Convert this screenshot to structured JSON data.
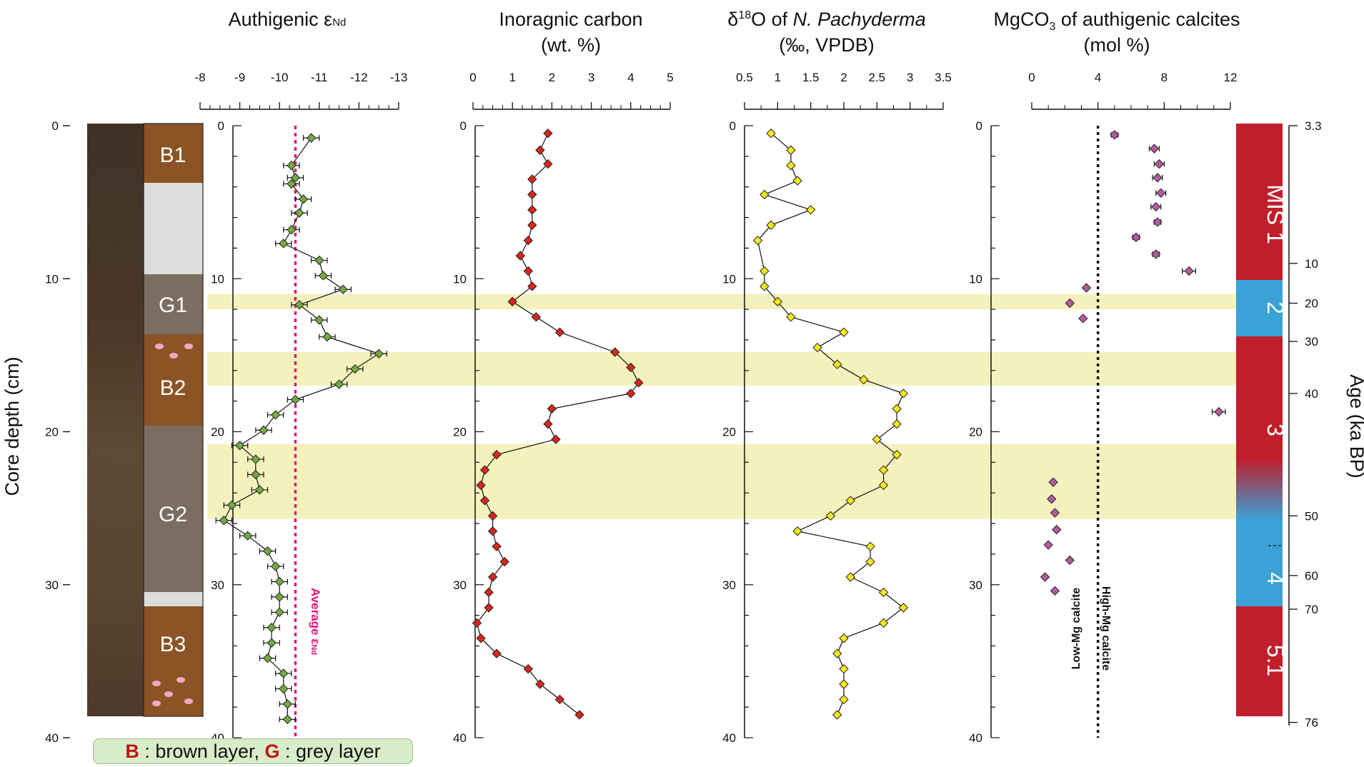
{
  "panels": {
    "eps": {
      "title": "Authigenic ε",
      "title_sub": "Nd",
      "ticks": [
        "-8",
        "-9",
        "-10",
        "-11",
        "-12",
        "-13"
      ]
    },
    "ic": {
      "title_line1": "Inoragnic carbon",
      "title_line2": "(wt. %)",
      "ticks": [
        "0",
        "1",
        "2",
        "3",
        "4",
        "5"
      ]
    },
    "d18o": {
      "title_prefix": "δ",
      "title_sup": "18",
      "title_mid": "O of ",
      "title_species": "N. Pachyderma",
      "title_line2": "(‰, VPDB)",
      "ticks": [
        "0.5",
        "1",
        "1.5",
        "2",
        "2.5",
        "3",
        "3.5"
      ]
    },
    "mg": {
      "title_a": "MgCO",
      "title_sub": "3",
      "title_b": " of authigenic calcites",
      "title_line2": "(mol %)",
      "ticks": [
        "0",
        "4",
        "8",
        "12"
      ]
    }
  },
  "depth_axis": {
    "label": "Core depth (cm)",
    "ticks": [
      "0",
      "10",
      "20",
      "30",
      "40"
    ]
  },
  "age_axis": {
    "label": "Age (ka BP)",
    "ticks": [
      "3.3",
      "10",
      "20",
      "30",
      "40",
      "50",
      "60",
      "70",
      "76"
    ]
  },
  "lithology": [
    "B1",
    "G1",
    "B2",
    "G2",
    "B3"
  ],
  "mis_stages": [
    "MIS 1",
    "2",
    "3",
    "4",
    "5.1"
  ],
  "annotations": {
    "average_label": "Average ε",
    "average_sub": "Nd",
    "low_mg": "Low-Mg calcite",
    "high_mg": "High-Mg calcite"
  },
  "legend": {
    "b_key": "B",
    "b_text": " : brown layer, ",
    "g_key": "G",
    "g_text": " : grey layer"
  },
  "colors": {
    "brown": "#8a5424",
    "grey": "#7b6e60",
    "light_grey": "#dcdcdc",
    "mis_red": "#c11e2c",
    "mis_blue": "#3aa2d6",
    "highlight": "#f4f1bd",
    "eps_marker": "#74aa3e",
    "ic_marker": "#d9261c",
    "d18o_marker": "#f7e81b",
    "mg_marker": "#b65aa0",
    "average": "#e0157b"
  },
  "chart_data": [
    {
      "type": "line",
      "title": "Authigenic εNd",
      "xlabel": "εNd",
      "ylabel": "Core depth (cm)",
      "xlim": [
        -8,
        -13
      ],
      "ylim": [
        0,
        40
      ],
      "average": -10.4,
      "series": [
        {
          "name": "Authigenic εNd",
          "depth": [
            0.8,
            2.6,
            3.4,
            3.8,
            4.8,
            5.7,
            6.8,
            7.7,
            8.8,
            9.8,
            10.7,
            11.7,
            12.7,
            13.8,
            14.9,
            15.9,
            16.9,
            17.9,
            18.9,
            19.9,
            20.9,
            21.8,
            22.8,
            23.8,
            24.8,
            25.8,
            26.8,
            27.8,
            28.8,
            29.8,
            30.8,
            31.8,
            32.8,
            33.8,
            34.8,
            35.8,
            36.8,
            37.8,
            38.8
          ],
          "values": [
            -10.8,
            -10.3,
            -10.4,
            -10.3,
            -10.6,
            -10.5,
            -10.3,
            -10.1,
            -11.0,
            -11.1,
            -11.6,
            -10.5,
            -11.0,
            -11.2,
            -12.5,
            -11.9,
            -11.5,
            -10.4,
            -9.9,
            -9.6,
            -9.0,
            -9.4,
            -9.4,
            -9.5,
            -8.8,
            -8.6,
            -9.2,
            -9.7,
            -9.9,
            -10.0,
            -10.0,
            -10.0,
            -9.8,
            -9.8,
            -9.7,
            -10.1,
            -10.1,
            -10.2,
            -10.2
          ],
          "error": 0.2
        }
      ]
    },
    {
      "type": "line",
      "title": "Inoragnic carbon (wt. %)",
      "xlabel": "wt. %",
      "ylabel": "Core depth (cm)",
      "xlim": [
        0,
        5
      ],
      "ylim": [
        0,
        40
      ],
      "series": [
        {
          "name": "Inorganic carbon",
          "depth": [
            0.5,
            1.6,
            2.5,
            3.5,
            4.5,
            5.5,
            6.5,
            7.5,
            8.5,
            9.5,
            10.5,
            11.5,
            12.5,
            13.5,
            14.8,
            15.8,
            16.8,
            17.5,
            18.5,
            19.5,
            20.5,
            21.5,
            22.5,
            23.5,
            24.5,
            25.5,
            26.5,
            27.5,
            28.5,
            29.5,
            30.5,
            31.5,
            32.5,
            33.5,
            34.5,
            35.5,
            36.5,
            37.5,
            38.5
          ],
          "values": [
            1.9,
            1.7,
            1.9,
            1.5,
            1.5,
            1.5,
            1.5,
            1.4,
            1.2,
            1.4,
            1.5,
            1.0,
            1.6,
            2.2,
            3.6,
            4.0,
            4.2,
            4.0,
            2.0,
            1.9,
            2.1,
            0.6,
            0.3,
            0.2,
            0.3,
            0.5,
            0.5,
            0.6,
            0.8,
            0.5,
            0.4,
            0.4,
            0.1,
            0.2,
            0.6,
            1.4,
            1.7,
            2.2,
            2.7
          ]
        }
      ]
    },
    {
      "type": "line",
      "title": "δ¹⁸O of N. Pachyderma (‰, VPDB)",
      "xlabel": "‰ VPDB",
      "ylabel": "Core depth (cm)",
      "xlim": [
        0.5,
        3.5
      ],
      "ylim": [
        0,
        40
      ],
      "series": [
        {
          "name": "δ¹⁸O",
          "depth": [
            0.5,
            1.6,
            2.6,
            3.6,
            4.5,
            5.5,
            6.5,
            7.5,
            9.5,
            10.5,
            11.5,
            12.5,
            13.5,
            14.5,
            15.6,
            16.6,
            17.5,
            18.5,
            19.5,
            20.5,
            21.5,
            22.5,
            23.5,
            24.5,
            25.5,
            26.5,
            27.5,
            28.5,
            29.5,
            30.5,
            31.5,
            32.5,
            33.5,
            34.5,
            35.5,
            36.5,
            37.5,
            38.5
          ],
          "values": [
            0.9,
            1.2,
            1.2,
            1.3,
            0.8,
            1.5,
            0.9,
            0.7,
            0.8,
            0.8,
            1.0,
            1.2,
            2.0,
            1.6,
            1.9,
            2.3,
            2.9,
            2.8,
            2.8,
            2.5,
            2.8,
            2.6,
            2.6,
            2.1,
            1.8,
            1.3,
            2.4,
            2.4,
            2.1,
            2.6,
            2.9,
            2.6,
            2.0,
            1.9,
            2.0,
            2.0,
            2.0,
            1.9
          ]
        }
      ]
    },
    {
      "type": "scatter",
      "title": "MgCO₃ of authigenic calcites (mol %)",
      "xlabel": "mol %",
      "ylabel": "Core depth (cm)",
      "xlim": [
        0,
        12
      ],
      "ylim": [
        0,
        40
      ],
      "threshold": 4,
      "series": [
        {
          "name": "MgCO₃",
          "depth": [
            0.6,
            1.5,
            2.5,
            3.4,
            4.4,
            5.3,
            6.3,
            7.3,
            8.4,
            9.5,
            10.6,
            11.6,
            12.6,
            18.7,
            23.3,
            24.4,
            25.3,
            26.4,
            27.4,
            28.4,
            29.5,
            30.4
          ],
          "values": [
            5.0,
            7.4,
            7.7,
            7.6,
            7.8,
            7.5,
            7.6,
            6.3,
            7.5,
            9.5,
            3.3,
            2.3,
            3.1,
            11.3,
            1.3,
            1.2,
            1.4,
            1.5,
            1.0,
            2.3,
            0.8,
            1.4
          ],
          "error": [
            0.2,
            0.3,
            0.3,
            0.3,
            0.3,
            0.3,
            0.2,
            0.2,
            0.2,
            0.4,
            0,
            0,
            0,
            0.4,
            0,
            0,
            0,
            0,
            0,
            0,
            0,
            0
          ]
        }
      ]
    }
  ]
}
